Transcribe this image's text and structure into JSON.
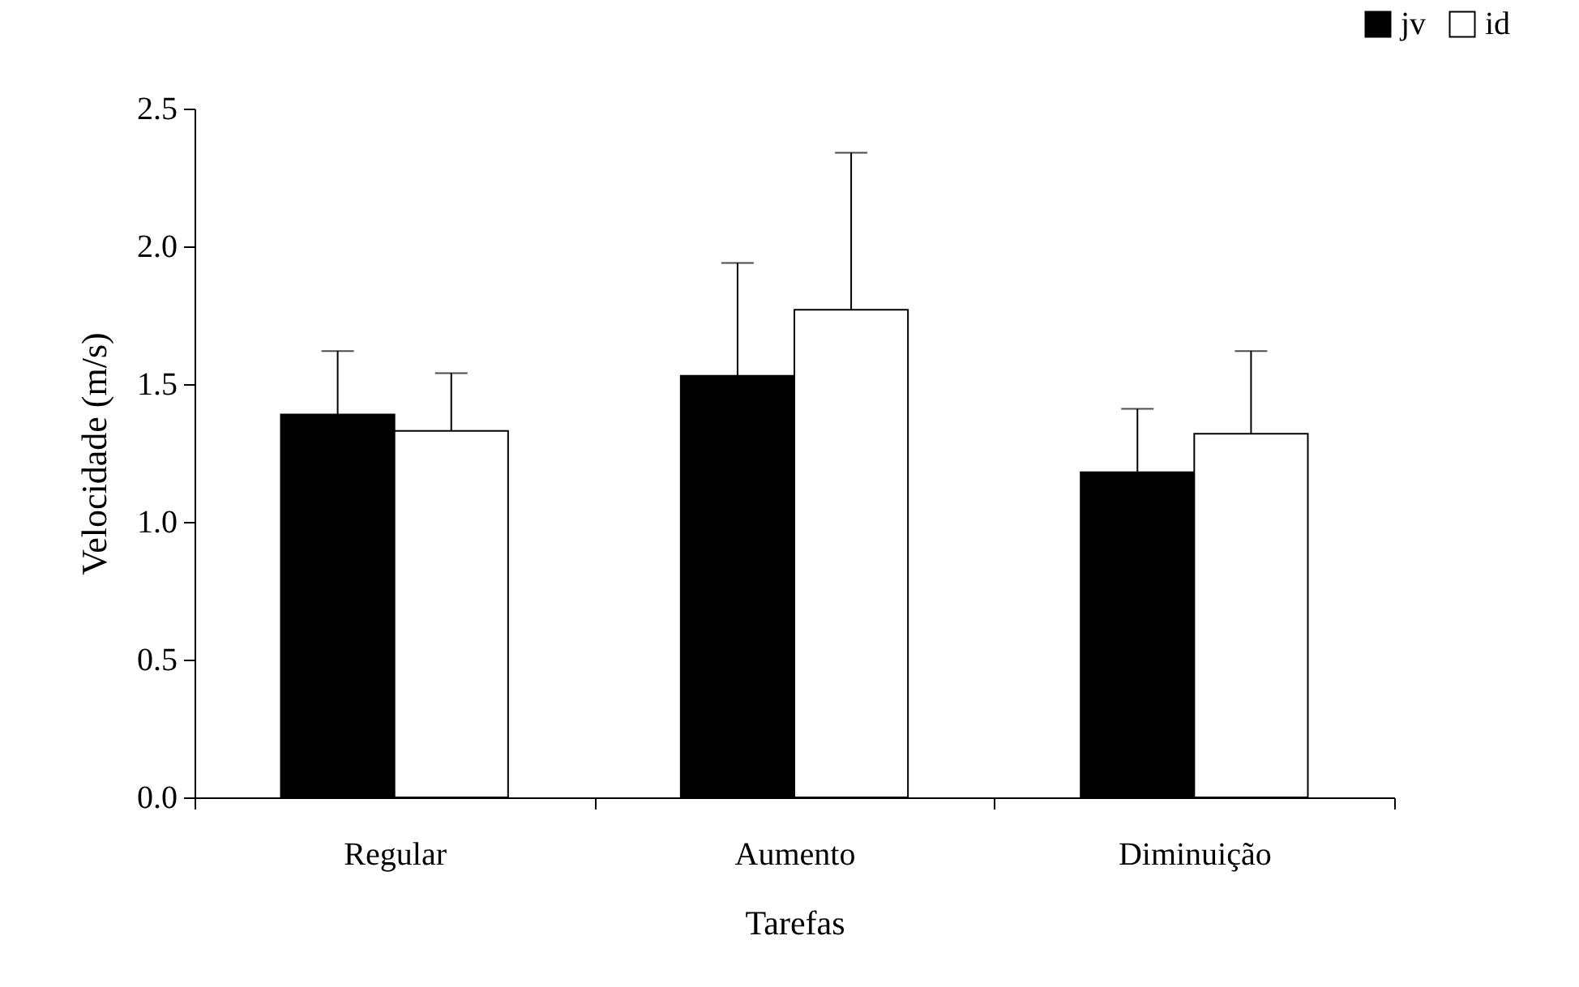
{
  "chart_data": {
    "type": "bar",
    "xlabel": "Tarefas",
    "ylabel": "Velocidade (m/s)",
    "categories": [
      "Regular",
      "Aumento",
      "Diminuição"
    ],
    "series": [
      {
        "name": "jv",
        "color": "#000000",
        "values": [
          1.39,
          1.53,
          1.18
        ],
        "errors": [
          [
            1.39,
            1.62
          ],
          [
            1.53,
            1.94
          ],
          [
            1.18,
            1.41
          ]
        ]
      },
      {
        "name": "id",
        "color": "#ffffff",
        "values": [
          1.33,
          1.77,
          1.32
        ],
        "errors": [
          [
            1.33,
            1.54
          ],
          [
            1.77,
            2.34
          ],
          [
            1.32,
            1.62
          ]
        ]
      }
    ],
    "ylim": [
      0,
      2.5
    ],
    "yticks": [
      {
        "value": 0,
        "label": "0.0"
      },
      0.5,
      {
        "value": 1,
        "label": "1.0"
      },
      1.5,
      {
        "value": 2,
        "label": "2.0"
      },
      2.5
    ],
    "grid": false,
    "legend": "top right"
  }
}
